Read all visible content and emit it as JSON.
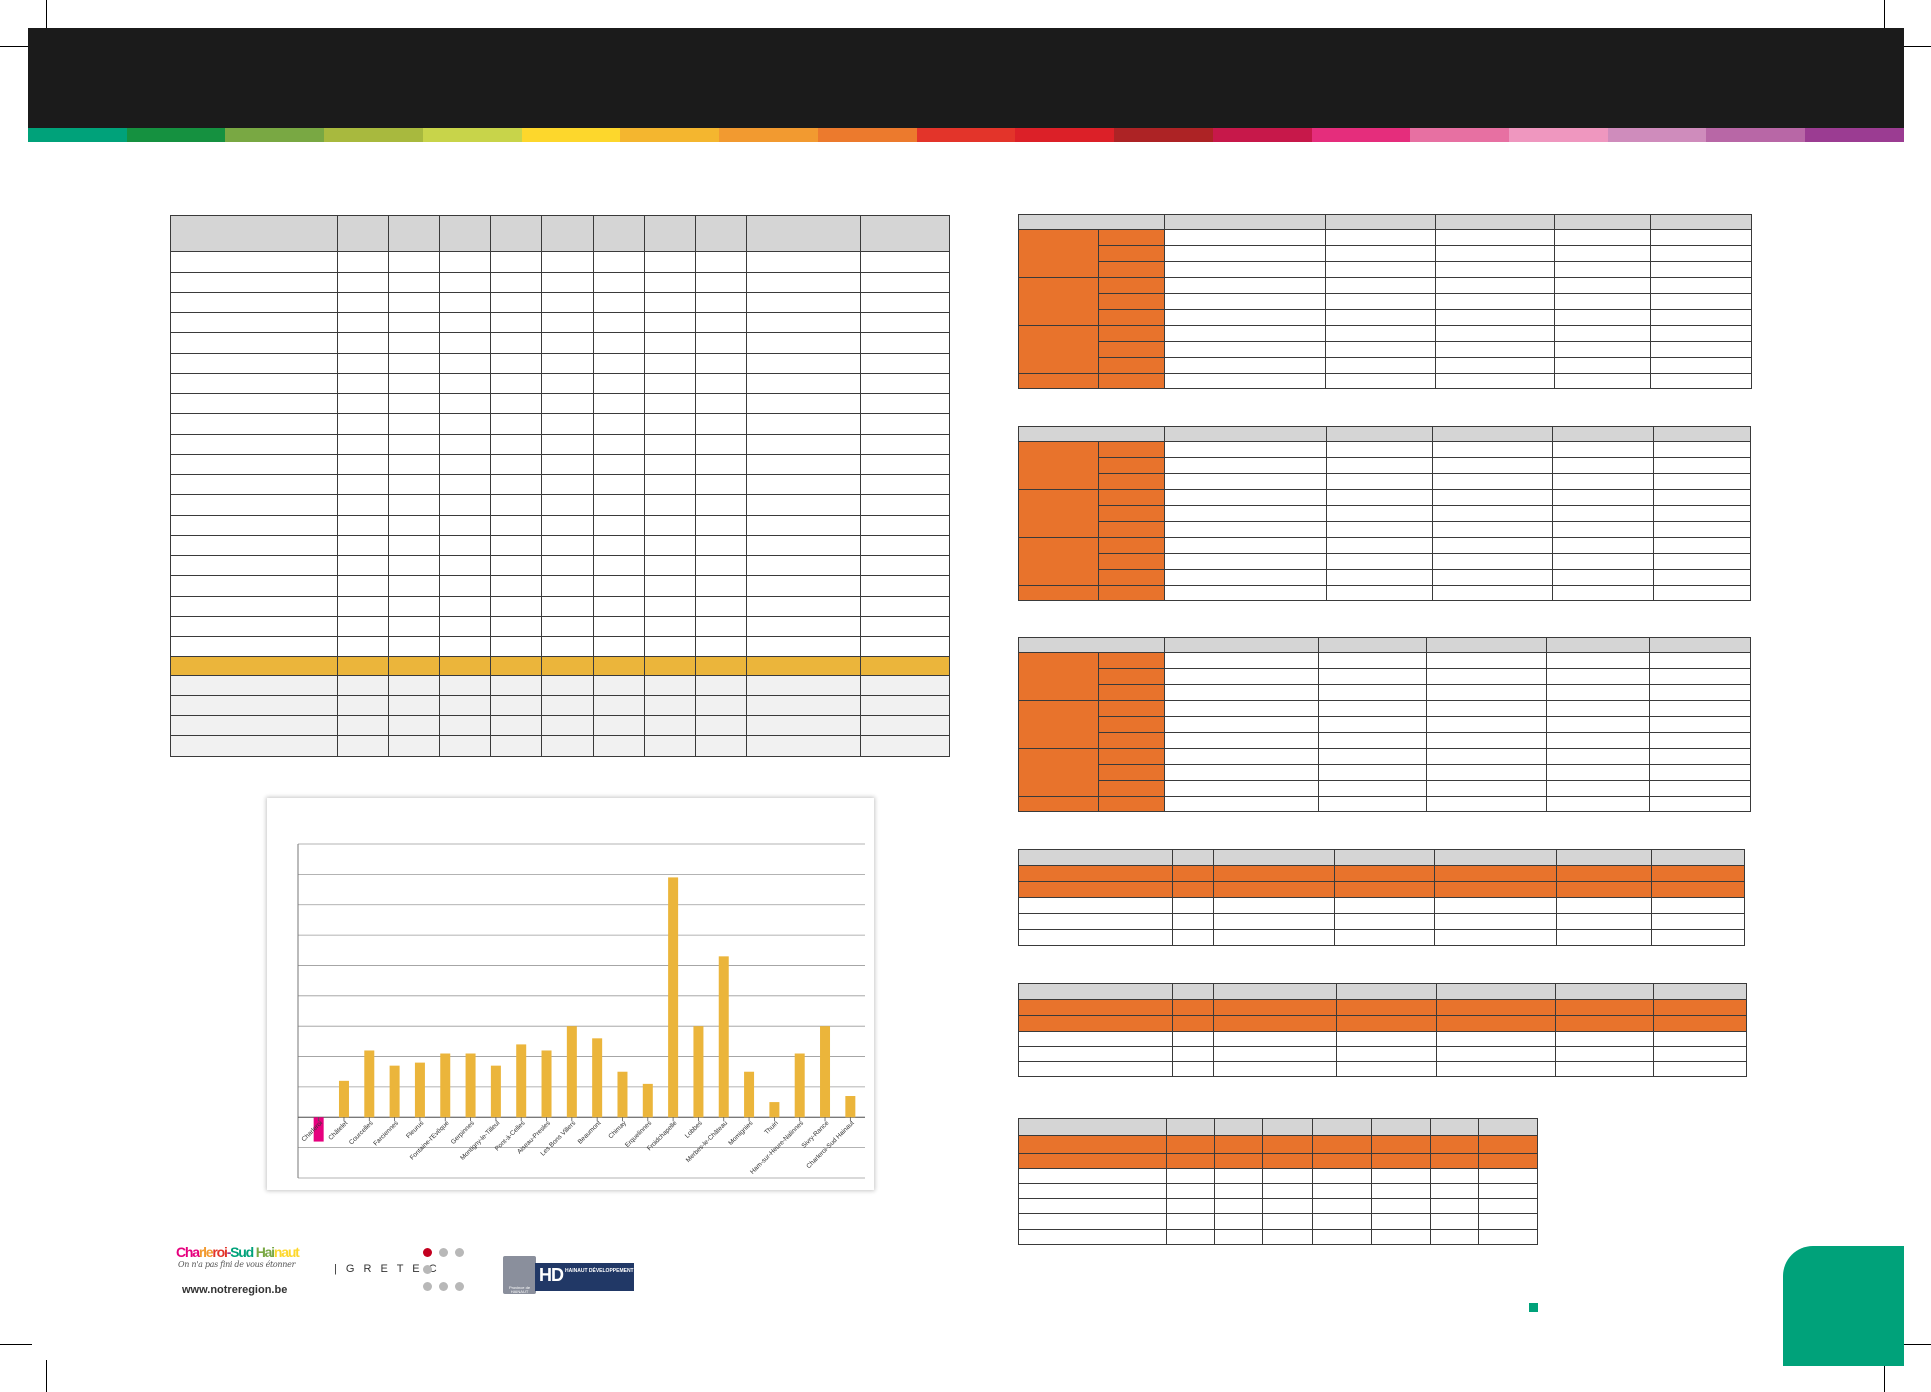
{
  "header": {
    "stripe_colors": [
      "#00a27a",
      "#159140",
      "#79a843",
      "#a8b93e",
      "#c8d44a",
      "#fdd72c",
      "#f4b62f",
      "#f29a30",
      "#ec7a2d",
      "#e3342a",
      "#dc2028",
      "#ad2325",
      "#c7184a",
      "#e52d7c",
      "#e770a2",
      "#ef97bf",
      "#cf8cbc",
      "#b867a6",
      "#9b3c92"
    ]
  },
  "colors": {
    "header_bg": "#1b1b1b",
    "table_head": "#d5d5d5",
    "orange": "#e8732c",
    "gold": "#ebb53b",
    "bar_color": "#ebb53b",
    "highlight_bar": "#e6007e",
    "green_accent": "#00a27a"
  },
  "chart_data": {
    "type": "bar",
    "categories": [
      "Charleroi",
      "Châtelet",
      "Courcelles",
      "Farciennes",
      "Fleurus",
      "Fontaine-l'Evêque",
      "Gerpinnes",
      "Montigny-le-Tilleul",
      "Pont-à-Celles",
      "Aiseau-Presles",
      "Les Bons Villers",
      "Beaumont",
      "Chimay",
      "Erquelinnes",
      "Froidchapelle",
      "Lobbes",
      "Merbes-le-Château",
      "Momignies",
      "Thuin",
      "Ham-sur-Heure-Nalinnes",
      "Sivry-Rance",
      "Charleroi-Sud Hainaut"
    ],
    "values": [
      -0.8,
      1.2,
      2.2,
      1.7,
      1.8,
      2.1,
      2.1,
      1.7,
      2.4,
      2.2,
      3.0,
      2.6,
      1.5,
      1.1,
      7.9,
      3.0,
      5.3,
      1.5,
      0.5,
      2.1,
      3.0,
      0.7
    ],
    "ylim": [
      -2,
      9
    ],
    "grid": true,
    "highlight_index": 0
  },
  "logos": {
    "notre": {
      "title_parts": [
        {
          "text": "Cha",
          "color": "#e6007e"
        },
        {
          "text": "rle",
          "color": "#f29a30"
        },
        {
          "text": "roi",
          "color": "#e3342a"
        },
        {
          "text": "-",
          "color": "#9b3c92"
        },
        {
          "text": "Sud ",
          "color": "#00a27a"
        },
        {
          "text": "Hai",
          "color": "#79a843"
        },
        {
          "text": "naut",
          "color": "#fdd72c"
        }
      ],
      "tagline": "On n'a pas fini de vous étonner",
      "url": "www.notreregion.be"
    },
    "gretec": {
      "label": "| G R E T E C",
      "dot_accent": "#c3001f"
    },
    "hd": {
      "province": "Province de HAINAUT",
      "letters": "HD",
      "name": "HAINAUT DÉVELOPPEMENT"
    }
  }
}
